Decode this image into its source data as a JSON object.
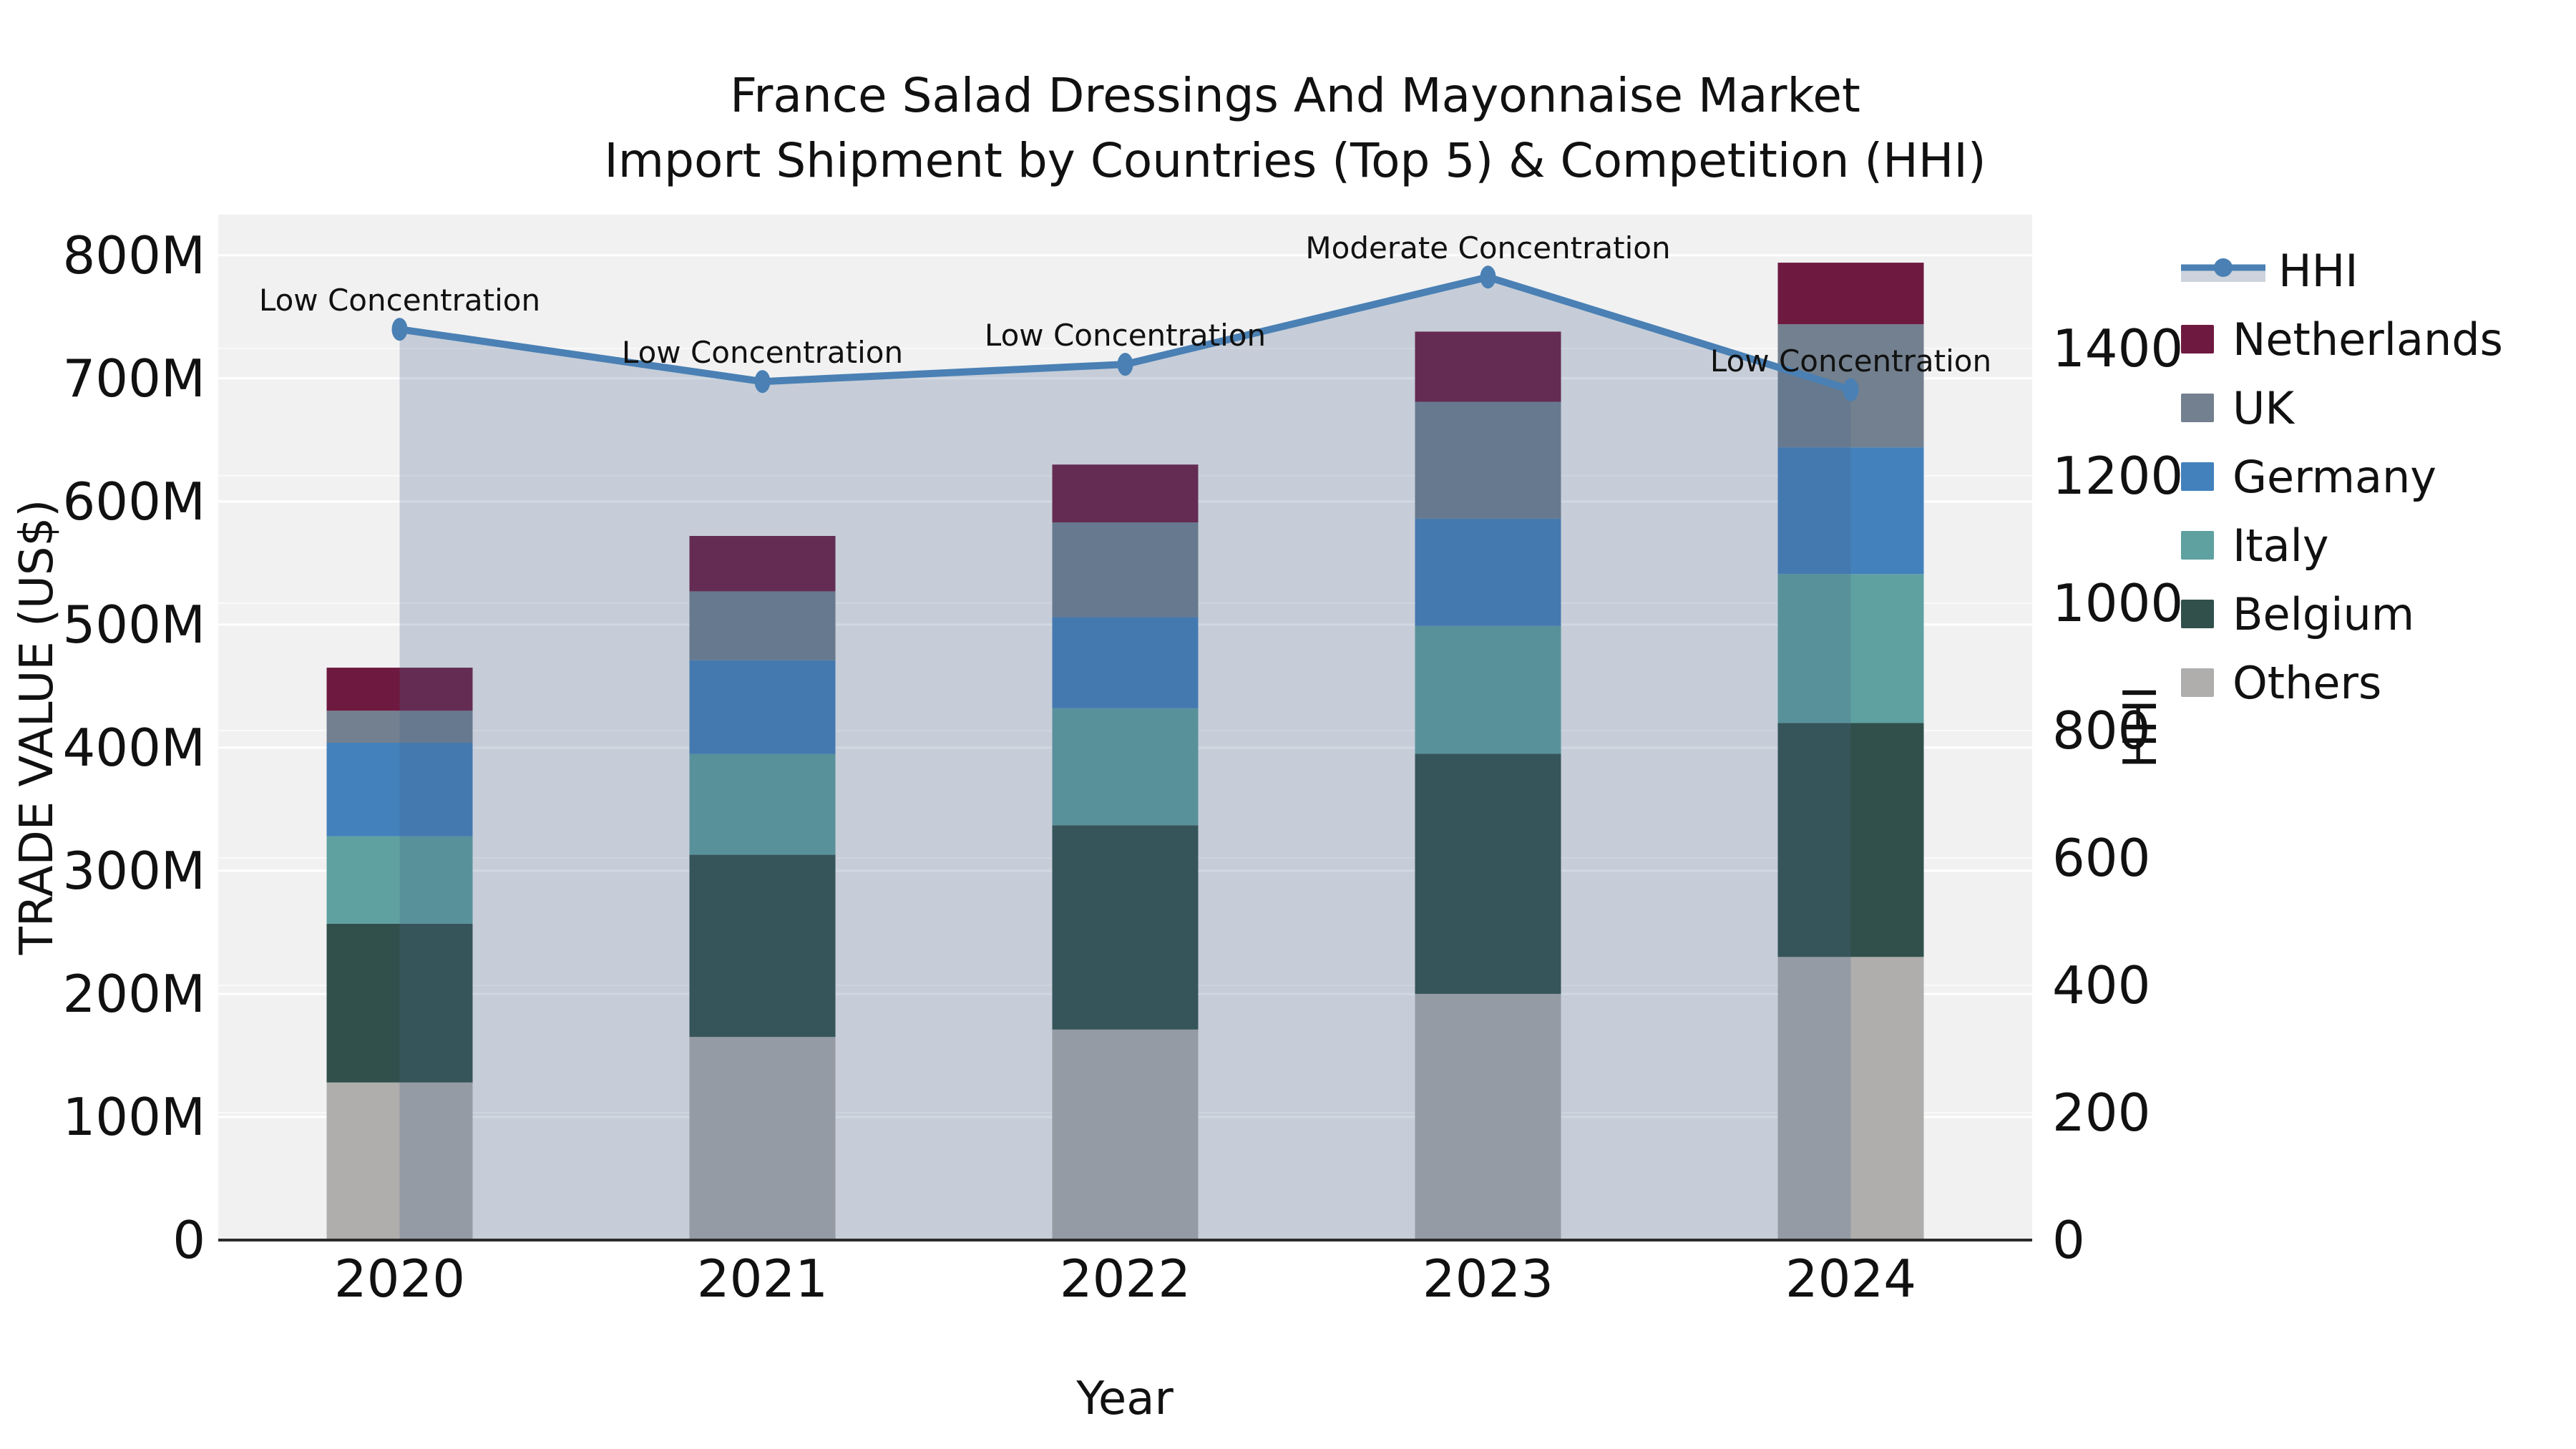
{
  "title": {
    "line1": "France Salad Dressings And Mayonnaise Market",
    "line2": "Import Shipment by Countries (Top 5) & Competition (HHI)"
  },
  "axes": {
    "x_title": "Year",
    "y_left_title": "TRADE VALUE (US$)",
    "y_right_title": "HHI",
    "y_left_tick_labels": [
      "0",
      "100M",
      "200M",
      "300M",
      "400M",
      "500M",
      "600M",
      "700M",
      "800M"
    ],
    "y_left_tick_values": [
      0,
      100,
      200,
      300,
      400,
      500,
      600,
      700,
      800
    ],
    "y_right_tick_labels": [
      "0",
      "200",
      "400",
      "600",
      "800",
      "1000",
      "1200",
      "1400"
    ],
    "y_right_tick_values": [
      0,
      200,
      400,
      600,
      800,
      1000,
      1200,
      1400
    ]
  },
  "chart_data": {
    "type": "bar",
    "subtype": "stacked-bars-with-line-overlay",
    "categories": [
      "2020",
      "2021",
      "2022",
      "2023",
      "2024"
    ],
    "value_unit": "US$ millions",
    "series": [
      {
        "name": "Others",
        "values": [
          128,
          165,
          171,
          200,
          230
        ]
      },
      {
        "name": "Belgium",
        "values": [
          129,
          148,
          166,
          195,
          190
        ]
      },
      {
        "name": "Italy",
        "values": [
          71,
          82,
          95,
          104,
          121
        ]
      },
      {
        "name": "Germany",
        "values": [
          76,
          76,
          74,
          87,
          103
        ]
      },
      {
        "name": "UK",
        "values": [
          26,
          56,
          77,
          95,
          100
        ]
      },
      {
        "name": "Netherlands",
        "values": [
          35,
          45,
          47,
          57,
          50
        ]
      }
    ],
    "line_series": {
      "name": "HHI",
      "axis": "right",
      "values": [
        1430,
        1348,
        1375,
        1512,
        1335
      ],
      "area_fill": true
    },
    "annotations": [
      {
        "category": "2020",
        "text": "Low Concentration"
      },
      {
        "category": "2021",
        "text": "Low Concentration"
      },
      {
        "category": "2022",
        "text": "Low Concentration"
      },
      {
        "category": "2023",
        "text": "Moderate Concentration"
      },
      {
        "category": "2024",
        "text": "Low Concentration"
      }
    ],
    "ylim_left": [
      0,
      833
    ],
    "ylim_right": [
      0,
      1610
    ],
    "grid": true,
    "legend_position": "right"
  },
  "legend": {
    "items": [
      {
        "label": "HHI",
        "type": "line",
        "color": "#4A80B4"
      },
      {
        "label": "Netherlands",
        "type": "swatch",
        "color": "#6E1A40"
      },
      {
        "label": "UK",
        "type": "swatch",
        "color": "#72808F"
      },
      {
        "label": "Germany",
        "type": "swatch",
        "color": "#4381BC"
      },
      {
        "label": "Italy",
        "type": "swatch",
        "color": "#5FA1A0"
      },
      {
        "label": "Belgium",
        "type": "swatch",
        "color": "#31504B"
      },
      {
        "label": "Others",
        "type": "swatch",
        "color": "#AFAEAD"
      }
    ]
  },
  "colors": {
    "netherlands": "#6E1A40",
    "uk": "#72808F",
    "germany": "#4381BC",
    "italy": "#5FA1A0",
    "belgium": "#31504B",
    "others": "#AFAEAD",
    "hhi_line": "#4A80B4",
    "hhi_area_fill": "rgba(70,100,140,0.25)",
    "legend_area_band": "#CDD3DC",
    "plot_background": "#F1F1F2",
    "grid_major": "#FFFFFF",
    "axis_line": "#2B2B2B",
    "text": "#111111"
  }
}
